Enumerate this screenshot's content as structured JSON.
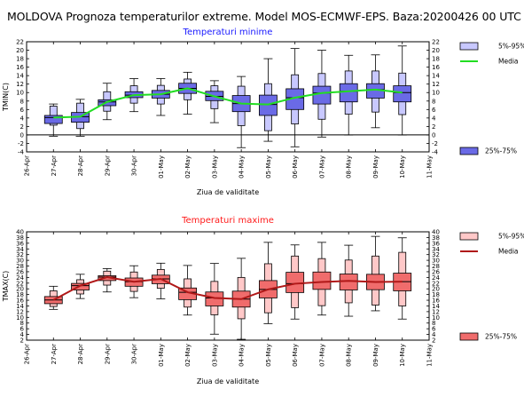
{
  "title": "MOLDOVA  Prognoza temperaturilor extreme.  Model MOS-ECMWF-EPS. Baza:20200426 00 UTC",
  "x_axis_label": "Ziua de validitate",
  "colors": {
    "min_title": "#1a1aff",
    "max_title": "#ff1a1a",
    "min_box": "#6a6ae6",
    "min_whisker_box": "#c8c8ff",
    "min_median_line": "#22dd22",
    "max_box": "#f06c6c",
    "max_whisker_box": "#ffc8c8",
    "max_median_line": "#b01818"
  },
  "chart_data": [
    {
      "type": "box",
      "title": "Temperaturi minime",
      "ylabel": "TMIN(C)",
      "xlabel": "Ziua de validitate",
      "ylim": [
        -4,
        22
      ],
      "yticks": [
        -4,
        -2,
        0,
        2,
        4,
        6,
        8,
        10,
        12,
        14,
        16,
        18,
        20,
        22
      ],
      "categories": [
        "26-Apr",
        "27-Apr",
        "28-Apr",
        "29-Apr",
        "30-Apr",
        "01-May",
        "02-May",
        "03-May",
        "04-May",
        "05-May",
        "06-May",
        "07-May",
        "08-May",
        "09-May",
        "10-May",
        "11-May"
      ],
      "legend": [
        "5%-95%",
        "Media",
        "25%-75%"
      ],
      "zero_line": true,
      "boxes": [
        {
          "day": "27-Apr",
          "w_low": -0.3,
          "p5": 2.3,
          "p25": 2.7,
          "median": 4.1,
          "p75": 4.6,
          "p95": 6.8,
          "w_high": 7.3
        },
        {
          "day": "28-Apr",
          "w_low": -0.3,
          "p5": 1.5,
          "p25": 3.0,
          "median": 4.3,
          "p75": 5.3,
          "p95": 7.5,
          "w_high": 8.4
        },
        {
          "day": "29-Apr",
          "w_low": 3.6,
          "p5": 5.6,
          "p25": 6.9,
          "median": 7.8,
          "p75": 8.3,
          "p95": 10.2,
          "w_high": 12.2
        },
        {
          "day": "30-Apr",
          "w_low": 5.5,
          "p5": 7.5,
          "p25": 8.8,
          "median": 9.4,
          "p75": 10.2,
          "p95": 11.6,
          "w_high": 13.3
        },
        {
          "day": "01-May",
          "w_low": 4.6,
          "p5": 7.3,
          "p25": 8.7,
          "median": 9.6,
          "p75": 10.5,
          "p95": 11.7,
          "w_high": 13.3
        },
        {
          "day": "02-May",
          "w_low": 4.9,
          "p5": 8.3,
          "p25": 9.8,
          "median": 11.0,
          "p75": 12.2,
          "p95": 13.2,
          "w_high": 14.8
        },
        {
          "day": "03-May",
          "w_low": 2.9,
          "p5": 6.2,
          "p25": 8.1,
          "median": 9.1,
          "p75": 10.3,
          "p95": 11.6,
          "w_high": 12.8
        },
        {
          "day": "04-May",
          "w_low": -3.0,
          "p5": 2.2,
          "p25": 5.5,
          "median": 7.4,
          "p75": 9.3,
          "p95": 11.5,
          "w_high": 13.8
        },
        {
          "day": "05-May",
          "w_low": -1.5,
          "p5": 1.0,
          "p25": 4.6,
          "median": 7.2,
          "p75": 9.4,
          "p95": 12.1,
          "w_high": 18.0
        },
        {
          "day": "06-May",
          "w_low": -2.8,
          "p5": 2.6,
          "p25": 6.0,
          "median": 8.8,
          "p75": 10.9,
          "p95": 14.2,
          "w_high": 20.4
        },
        {
          "day": "07-May",
          "w_low": -0.5,
          "p5": 3.7,
          "p25": 7.3,
          "median": 9.9,
          "p75": 11.5,
          "p95": 14.5,
          "w_high": 20.0
        },
        {
          "day": "08-May",
          "w_low": 0.0,
          "p5": 4.9,
          "p25": 7.8,
          "median": 10.3,
          "p75": 12.1,
          "p95": 15.1,
          "w_high": 18.8
        },
        {
          "day": "09-May",
          "w_low": 1.7,
          "p5": 5.4,
          "p25": 8.7,
          "median": 10.7,
          "p75": 12.1,
          "p95": 15.1,
          "w_high": 18.9
        },
        {
          "day": "10-May",
          "w_low": 0.0,
          "p5": 4.8,
          "p25": 7.8,
          "median": 10.0,
          "p75": 11.6,
          "p95": 14.6,
          "w_high": 21.0
        }
      ]
    },
    {
      "type": "box",
      "title": "Temperaturi maxime",
      "ylabel": "TMAX(C)",
      "xlabel": "Ziua de validitate",
      "ylim": [
        2,
        40
      ],
      "yticks": [
        2,
        4,
        6,
        8,
        10,
        12,
        14,
        16,
        18,
        20,
        22,
        24,
        26,
        28,
        30,
        32,
        34,
        36,
        38,
        40
      ],
      "categories": [
        "26-Apr",
        "27-Apr",
        "28-Apr",
        "29-Apr",
        "30-Apr",
        "01-May",
        "02-May",
        "03-May",
        "04-May",
        "05-May",
        "06-May",
        "07-May",
        "08-May",
        "09-May",
        "10-May",
        "11-May"
      ],
      "legend": [
        "5%-95%",
        "Media",
        "25%-75%"
      ],
      "zero_line": false,
      "boxes": [
        {
          "day": "27-Apr",
          "w_low": 12.8,
          "p5": 13.8,
          "p25": 14.8,
          "median": 16.1,
          "p75": 17.3,
          "p95": 19.3,
          "w_high": 20.9
        },
        {
          "day": "28-Apr",
          "w_low": 16.6,
          "p5": 18.2,
          "p25": 19.6,
          "median": 21.1,
          "p75": 21.9,
          "p95": 23.2,
          "w_high": 25.1
        },
        {
          "day": "29-Apr",
          "w_low": 18.9,
          "p5": 21.3,
          "p25": 22.9,
          "median": 24.1,
          "p75": 24.6,
          "p95": 26.2,
          "w_high": 27.1
        },
        {
          "day": "30-Apr",
          "w_low": 16.9,
          "p5": 19.1,
          "p25": 20.9,
          "median": 22.5,
          "p75": 23.8,
          "p95": 25.9,
          "w_high": 28.1
        },
        {
          "day": "01-May",
          "w_low": 16.5,
          "p5": 20.2,
          "p25": 21.8,
          "median": 23.5,
          "p75": 24.8,
          "p95": 26.8,
          "w_high": 29.0
        },
        {
          "day": "02-May",
          "w_low": 10.8,
          "p5": 13.6,
          "p25": 16.2,
          "median": 18.8,
          "p75": 20.3,
          "p95": 23.5,
          "w_high": 28.2
        },
        {
          "day": "03-May",
          "w_low": 4.1,
          "p5": 10.9,
          "p25": 14.0,
          "median": 16.8,
          "p75": 18.9,
          "p95": 22.6,
          "w_high": 28.9
        },
        {
          "day": "04-May",
          "w_low": 2.3,
          "p5": 9.5,
          "p25": 13.6,
          "median": 16.4,
          "p75": 19.2,
          "p95": 24.0,
          "w_high": 30.7
        },
        {
          "day": "05-May",
          "w_low": 7.8,
          "p5": 11.6,
          "p25": 16.8,
          "median": 19.8,
          "p75": 22.9,
          "p95": 28.8,
          "w_high": 36.3
        },
        {
          "day": "06-May",
          "w_low": 9.4,
          "p5": 13.4,
          "p25": 18.7,
          "median": 21.8,
          "p75": 25.8,
          "p95": 31.5,
          "w_high": 35.4
        },
        {
          "day": "07-May",
          "w_low": 10.8,
          "p5": 14.1,
          "p25": 19.8,
          "median": 22.4,
          "p75": 25.9,
          "p95": 30.6,
          "w_high": 36.3
        },
        {
          "day": "08-May",
          "w_low": 10.4,
          "p5": 15.1,
          "p25": 19.6,
          "median": 22.8,
          "p75": 25.2,
          "p95": 30.1,
          "w_high": 35.3
        },
        {
          "day": "09-May",
          "w_low": 12.3,
          "p5": 14.3,
          "p25": 19.7,
          "median": 22.4,
          "p75": 25.1,
          "p95": 31.5,
          "w_high": 38.4
        },
        {
          "day": "10-May",
          "w_low": 9.4,
          "p5": 14.0,
          "p25": 19.3,
          "median": 22.5,
          "p75": 25.5,
          "p95": 32.8,
          "w_high": 37.9
        }
      ]
    }
  ]
}
